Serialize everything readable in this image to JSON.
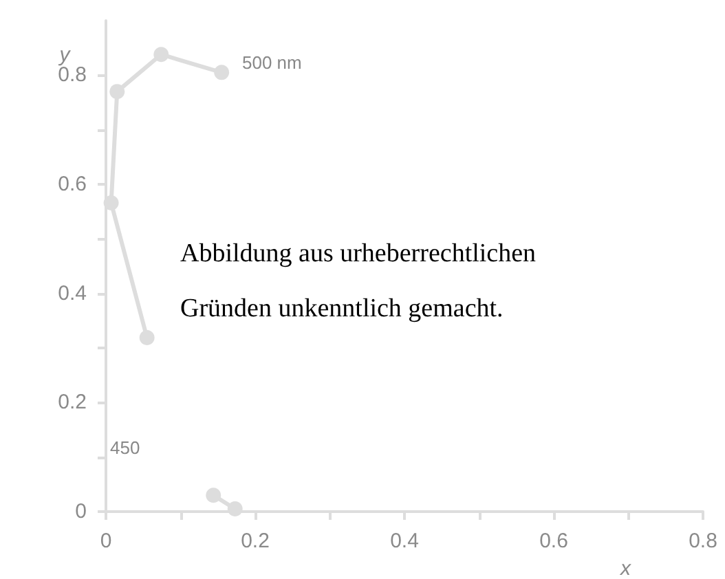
{
  "chart_data": {
    "type": "line",
    "xlabel": "x",
    "ylabel": "y",
    "x": [
      0.173,
      0.144,
      0.1,
      0.055,
      0.007,
      0.015,
      0.074,
      0.155
    ],
    "values": [
      0.005,
      0.03,
      null,
      0.319,
      0.566,
      0.77,
      0.838,
      0.805
    ],
    "color": "#dddddd",
    "marker": "circle",
    "line_style": "solid",
    "grid": false,
    "xlim": [
      0,
      0.8
    ],
    "xticks": [
      0,
      {
        "value": 0.1,
        "label": null
      },
      0.2,
      {
        "value": 0.3,
        "label": null
      },
      0.4,
      {
        "value": 0.5,
        "label": null
      },
      0.6,
      {
        "value": 0.7,
        "label": null
      },
      0.8
    ],
    "ylim": [
      0,
      0.9
    ],
    "yticks": [
      0,
      {
        "value": 0.1,
        "label": null
      },
      0.2,
      {
        "value": 0.3,
        "label": null
      },
      0.4,
      {
        "value": 0.5,
        "label": null
      },
      0.6,
      {
        "value": 0.7,
        "label": null
      },
      0.8
    ],
    "annotations": [
      "500 nm",
      "450",
      "Abbildung aus urheberrechtlichen Gründen unkenntlich gemacht."
    ]
  }
}
